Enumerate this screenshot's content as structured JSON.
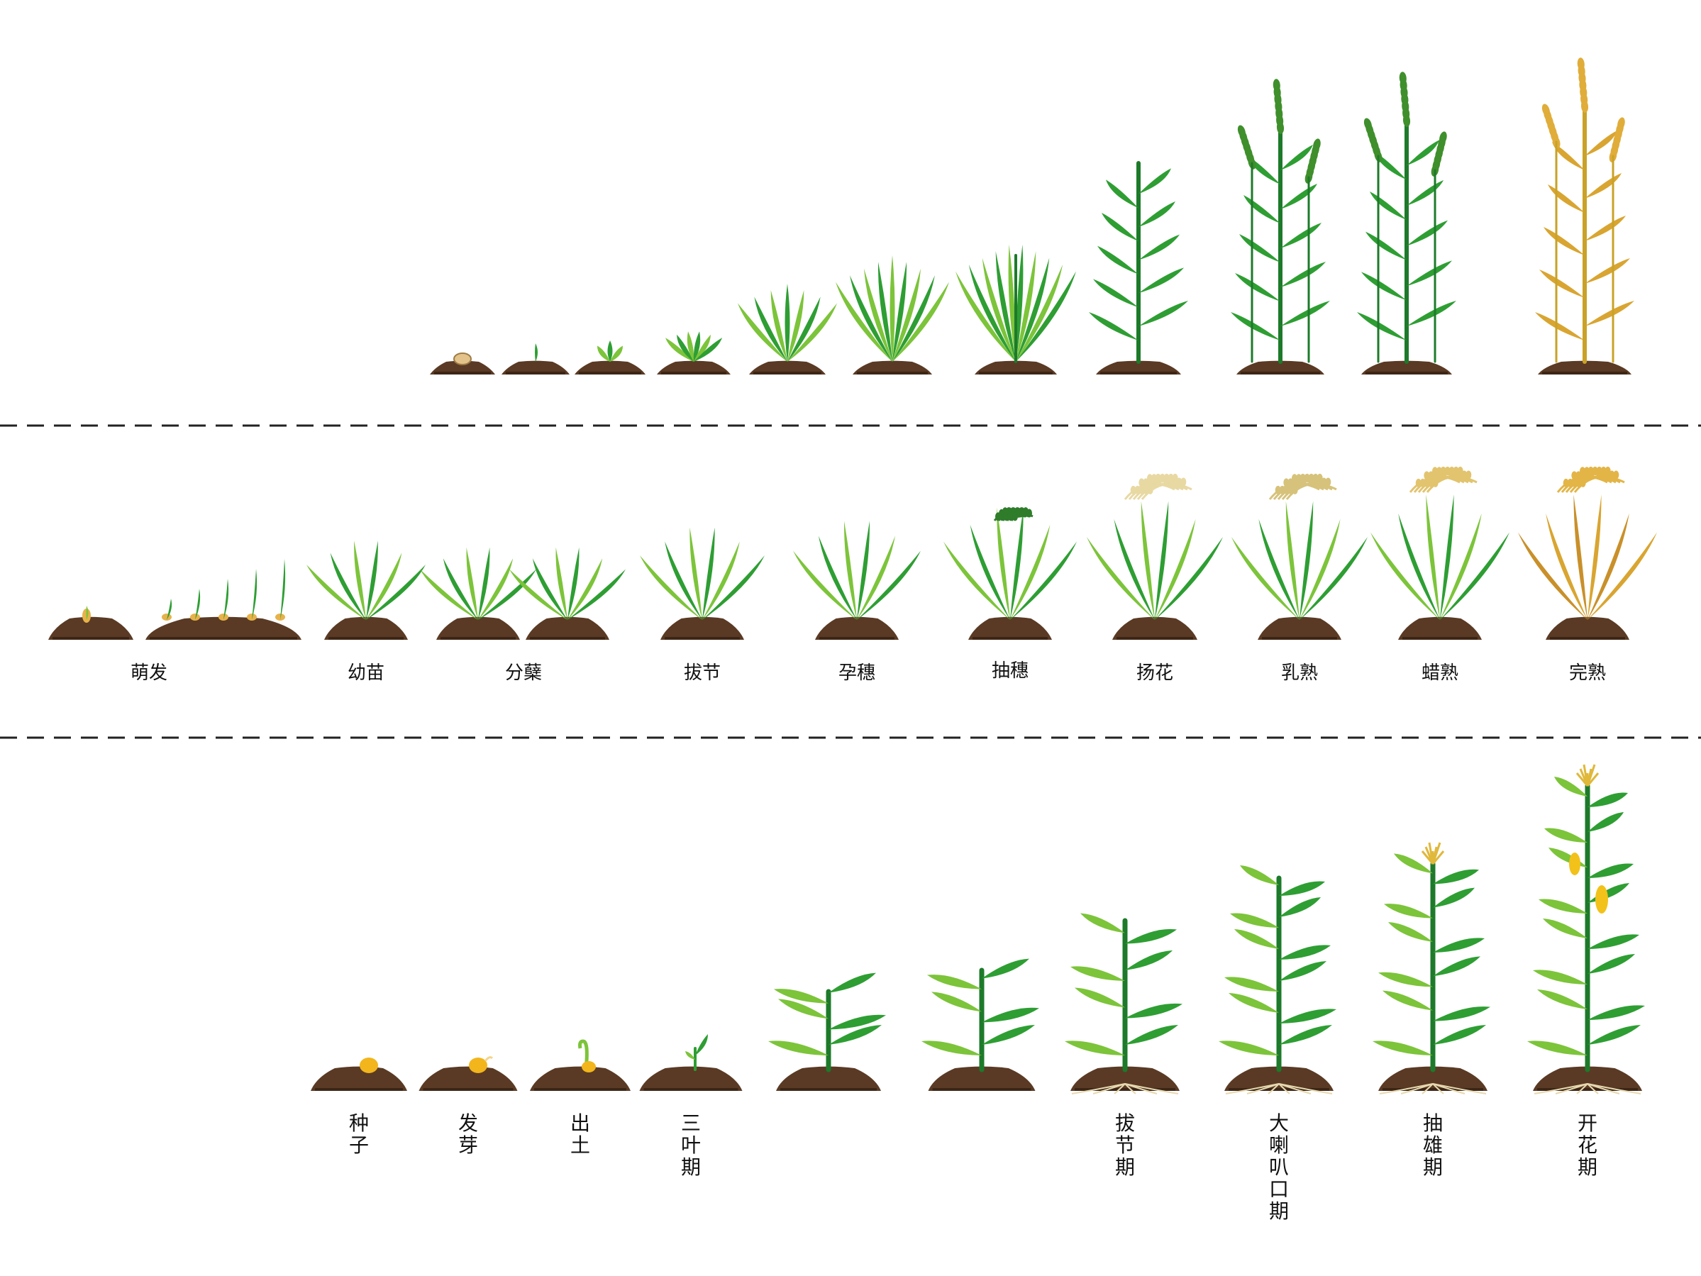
{
  "colors": {
    "soil": "#5a3a24",
    "soil_dark": "#3d2616",
    "leaf": "#2e9e33",
    "leaf_light": "#7cc43a",
    "leaf_dark": "#1d7a2a",
    "stem_yellow": "#c9a227",
    "golden": "#d9a531",
    "seed": "#e8b24a",
    "divider": "#222222"
  },
  "sections": [
    {
      "crop": "wheat",
      "labels": []
    },
    {
      "crop": "rice",
      "labels": [
        "萌发",
        "幼苗",
        "分蘖",
        "拔节",
        "孕穗",
        "抽穗",
        "扬花",
        "乳熟",
        "蜡熟",
        "完熟"
      ]
    },
    {
      "crop": "maize",
      "labels": [
        "种子",
        "发芽",
        "出土",
        "三叶期",
        "",
        "",
        "拔节期",
        "大喇叭口期",
        "抽雄期",
        "开花期"
      ]
    }
  ]
}
